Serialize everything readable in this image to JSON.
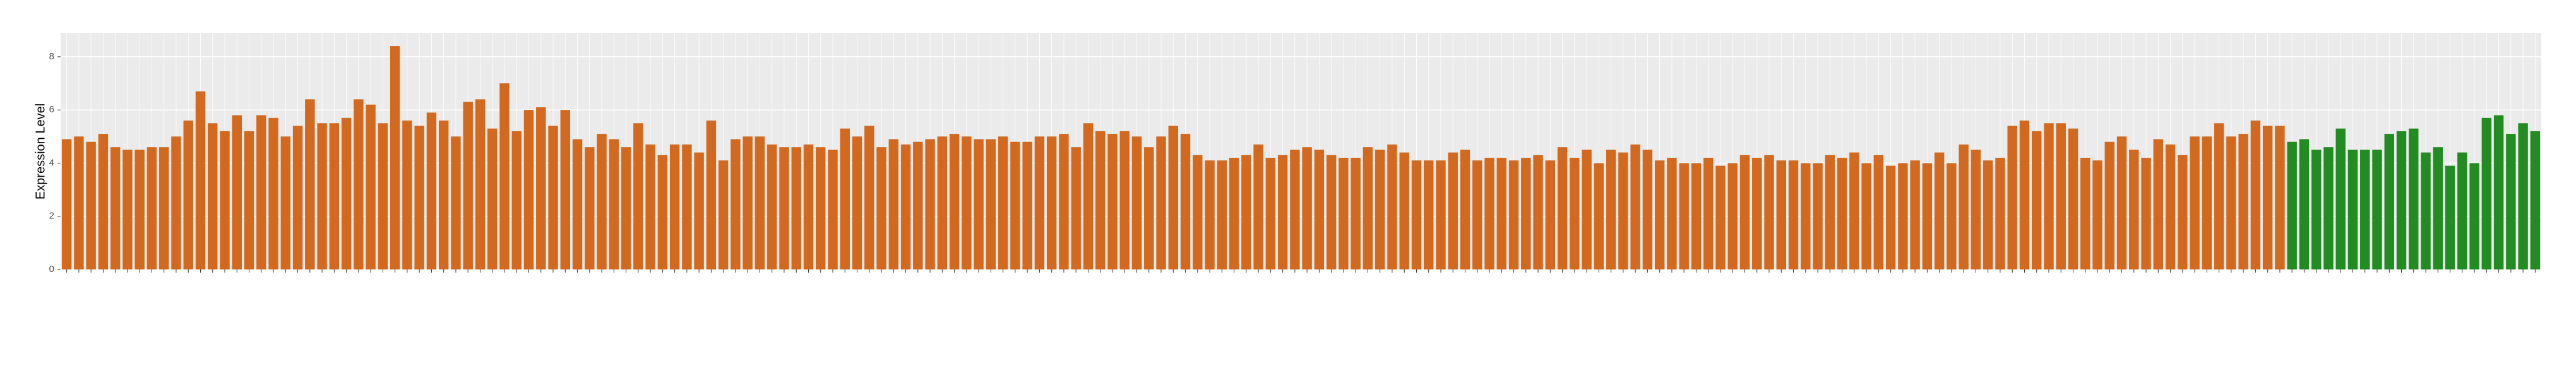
{
  "chart_data": {
    "type": "bar",
    "y_label": "Expression Level",
    "ylim": [
      0,
      8.9
    ],
    "yticks": [
      0,
      2,
      4,
      6,
      8
    ],
    "grid": true,
    "series": [
      {
        "color": "#d2691e",
        "values": [
          4.9,
          5.0,
          4.8,
          5.1,
          4.6,
          4.5,
          4.5,
          4.6,
          4.6,
          5.0,
          5.6,
          6.7,
          5.5,
          5.2,
          5.8,
          5.2,
          5.8,
          5.7,
          5.0,
          5.4,
          6.4,
          5.5,
          5.5,
          5.7,
          6.4,
          6.2,
          5.5,
          8.4,
          5.6,
          5.4,
          5.9,
          5.6,
          5.0,
          6.3,
          6.4,
          5.3,
          7.0,
          5.2,
          6.0,
          6.1,
          5.4,
          6.0,
          4.9,
          4.6,
          5.1,
          4.9,
          4.6,
          5.5,
          4.7,
          4.3,
          4.7,
          4.7,
          4.4,
          5.6,
          4.1,
          4.9,
          5.0,
          5.0,
          4.7,
          4.6,
          4.6,
          4.7,
          4.6,
          4.5,
          5.3,
          5.0,
          5.4,
          4.6,
          4.9,
          4.7,
          4.8,
          4.9,
          5.0,
          5.1,
          5.0,
          4.9,
          4.9,
          5.0,
          4.8,
          4.8,
          5.0,
          5.0,
          5.1,
          4.6,
          5.5,
          5.2,
          5.1,
          5.2,
          5.0,
          4.6,
          5.0,
          5.4,
          5.1,
          4.3,
          4.1,
          4.1,
          4.2,
          4.3,
          4.7,
          4.2,
          4.3,
          4.5,
          4.6,
          4.5,
          4.3,
          4.2,
          4.2,
          4.6,
          4.5,
          4.7,
          4.4,
          4.1,
          4.1,
          4.1,
          4.4,
          4.5,
          4.1,
          4.2,
          4.2,
          4.1,
          4.2,
          4.3,
          4.1,
          4.6,
          4.2,
          4.5,
          4.0,
          4.5,
          4.4,
          4.7,
          4.5,
          4.1,
          4.2,
          4.0,
          4.0,
          4.2,
          3.9,
          4.0,
          4.3,
          4.2,
          4.3,
          4.1,
          4.1,
          4.0,
          4.0,
          4.3,
          4.2,
          4.4,
          4.0,
          4.3,
          3.9,
          4.0,
          4.1,
          4.0,
          4.4,
          4.0,
          4.7,
          4.5,
          4.1,
          4.2,
          5.4,
          5.6,
          5.2,
          5.5,
          5.5,
          5.3,
          4.2,
          4.1,
          4.8,
          5.0,
          4.5,
          4.2,
          4.9,
          4.7,
          4.3,
          5.0,
          5.0,
          5.5,
          5.0,
          5.1,
          5.6,
          5.4,
          5.4
        ]
      },
      {
        "color": "#228b22",
        "values": [
          4.8,
          4.9,
          4.5,
          4.6,
          5.3,
          4.5,
          4.5,
          4.5,
          5.1,
          5.2,
          5.3,
          4.4,
          4.6,
          3.9,
          4.4,
          4.0,
          5.7,
          5.8,
          5.1,
          5.5,
          5.2
        ]
      }
    ]
  }
}
